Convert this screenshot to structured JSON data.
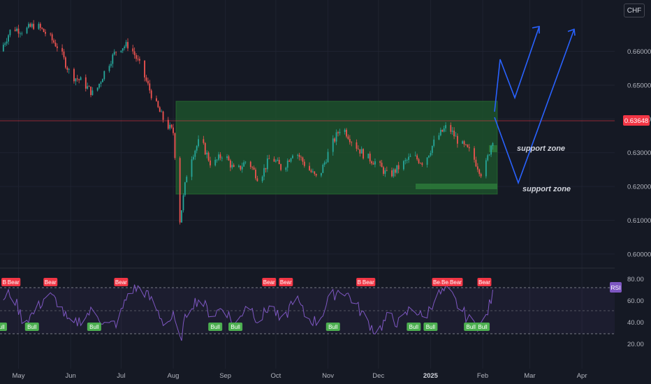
{
  "toolbar": {
    "currency_label": "CHF"
  },
  "colors": {
    "background": "#151924",
    "grid": "#1f2330",
    "up_candle": "#26a69a",
    "down_candle": "#ef5350",
    "range_box_fill": "#1f5a2c",
    "forecast_arrow": "#2962ff",
    "rsi_line": "#7e57c2",
    "bear_label": "#f23645",
    "bull_label": "#4caf50",
    "last_price_badge": "#f23645"
  },
  "chart_data": [
    {
      "type": "line",
      "title": "",
      "xlabel": "",
      "ylabel": "",
      "x_ticks": [
        "May",
        "Jun",
        "Jul",
        "Aug",
        "Sep",
        "Oct",
        "Nov",
        "Dec",
        "2025",
        "Feb",
        "Mar",
        "Apr"
      ],
      "y_ticks": [
        "0.66000",
        "0.65000",
        "0.64000",
        "0.63000",
        "0.62000",
        "0.61000",
        "0.60000"
      ],
      "ylim": [
        0.5975,
        0.669
      ],
      "last_price": "0.63648",
      "grid": true,
      "series": [
        {
          "x": [
            "2024-04-20",
            "2024-04-27",
            "2024-05-04",
            "2024-05-11",
            "2024-05-18",
            "2024-05-25",
            "2024-06-01",
            "2024-06-08",
            "2024-06-15",
            "2024-06-22",
            "2024-06-29",
            "2024-07-06",
            "2024-07-13",
            "2024-07-20",
            "2024-07-27",
            "2024-08-01",
            "2024-08-05",
            "2024-08-10",
            "2024-08-17",
            "2024-08-24",
            "2024-08-31",
            "2024-09-07",
            "2024-09-14",
            "2024-09-21",
            "2024-09-28",
            "2024-10-05",
            "2024-10-12",
            "2024-10-19",
            "2024-10-26",
            "2024-11-02",
            "2024-11-09",
            "2024-11-16",
            "2024-11-23",
            "2024-11-30",
            "2024-12-07",
            "2024-12-14",
            "2024-12-21",
            "2024-12-28",
            "2025-01-04",
            "2025-01-11",
            "2025-01-18",
            "2025-01-25",
            "2025-02-01",
            "2025-02-08"
          ],
          "values": [
            0.66,
            0.667,
            0.666,
            0.668,
            0.665,
            0.661,
            0.653,
            0.651,
            0.647,
            0.655,
            0.661,
            0.662,
            0.655,
            0.646,
            0.639,
            0.636,
            0.61,
            0.627,
            0.634,
            0.626,
            0.63,
            0.624,
            0.628,
            0.622,
            0.629,
            0.625,
            0.631,
            0.626,
            0.622,
            0.631,
            0.638,
            0.633,
            0.629,
            0.627,
            0.623,
            0.626,
            0.629,
            0.627,
            0.634,
            0.638,
            0.633,
            0.63,
            0.623,
            0.636
          ]
        }
      ],
      "support_zone_upper": [
        0.627,
        0.628
      ],
      "support_zone_lower": [
        0.618,
        0.619
      ],
      "annotations": [
        "support zone",
        "support zone"
      ]
    },
    {
      "type": "line",
      "title": "",
      "legend_label": "RSI",
      "y_ticks": [
        "80.00",
        "60.00",
        "40.00",
        "20.00"
      ],
      "ylim": [
        10,
        85
      ],
      "levels": [
        70,
        50,
        30
      ],
      "series": [
        {
          "x": [
            "2024-04-20",
            "2024-04-27",
            "2024-05-04",
            "2024-05-11",
            "2024-05-18",
            "2024-05-25",
            "2024-06-01",
            "2024-06-08",
            "2024-06-15",
            "2024-06-22",
            "2024-06-29",
            "2024-07-06",
            "2024-07-13",
            "2024-07-20",
            "2024-07-27",
            "2024-08-01",
            "2024-08-05",
            "2024-08-10",
            "2024-08-17",
            "2024-08-24",
            "2024-08-31",
            "2024-09-07",
            "2024-09-14",
            "2024-09-21",
            "2024-09-28",
            "2024-10-05",
            "2024-10-12",
            "2024-10-19",
            "2024-10-26",
            "2024-11-02",
            "2024-11-09",
            "2024-11-16",
            "2024-11-23",
            "2024-11-30",
            "2024-12-07",
            "2024-12-14",
            "2024-12-21",
            "2024-12-28",
            "2025-01-04",
            "2025-01-11",
            "2025-01-18",
            "2025-01-25",
            "2025-02-01",
            "2025-02-08"
          ],
          "values": [
            60,
            68,
            40,
            50,
            66,
            58,
            35,
            44,
            52,
            36,
            40,
            70,
            72,
            58,
            38,
            45,
            22,
            55,
            62,
            45,
            56,
            34,
            60,
            40,
            58,
            36,
            66,
            44,
            40,
            62,
            72,
            60,
            44,
            30,
            46,
            38,
            56,
            42,
            64,
            70,
            54,
            40,
            36,
            70
          ]
        }
      ],
      "signals": [
        {
          "label": "Bear",
          "date": "2024-04-25"
        },
        {
          "label": "Bear",
          "date": "2024-04-28"
        },
        {
          "label": "Bull",
          "date": "2024-04-20"
        },
        {
          "label": "Bull",
          "date": "2024-05-09"
        },
        {
          "label": "Bear",
          "date": "2024-05-20"
        },
        {
          "label": "Bull",
          "date": "2024-06-15"
        },
        {
          "label": "Bear",
          "date": "2024-07-01"
        },
        {
          "label": "Bull",
          "date": "2024-08-26"
        },
        {
          "label": "Bull",
          "date": "2024-09-07"
        },
        {
          "label": "Bear",
          "date": "2024-09-27"
        },
        {
          "label": "Bear",
          "date": "2024-10-07"
        },
        {
          "label": "Bull",
          "date": "2024-11-04"
        },
        {
          "label": "Bear",
          "date": "2024-11-22"
        },
        {
          "label": "Bear",
          "date": "2024-11-25"
        },
        {
          "label": "Bull",
          "date": "2024-12-22"
        },
        {
          "label": "Bull",
          "date": "2025-01-01"
        },
        {
          "label": "Bear",
          "date": "2025-01-06"
        },
        {
          "label": "Bear",
          "date": "2025-01-11"
        },
        {
          "label": "Bear",
          "date": "2025-01-16"
        },
        {
          "label": "Bull",
          "date": "2025-01-25"
        },
        {
          "label": "Bear",
          "date": "2025-02-02"
        },
        {
          "label": "Bull",
          "date": "2025-02-01"
        }
      ]
    }
  ]
}
